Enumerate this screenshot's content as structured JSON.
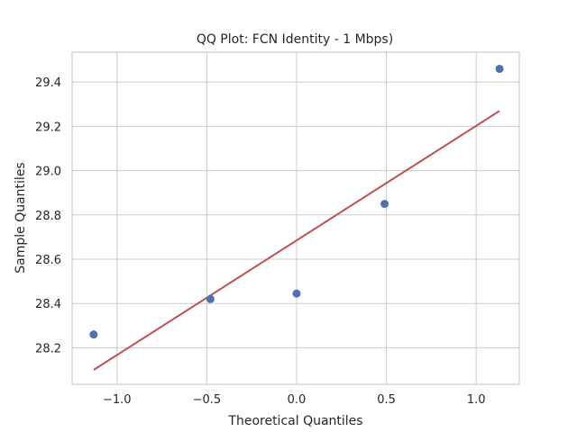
{
  "chart_data": {
    "type": "scatter",
    "title": "QQ Plot: FCN Identity - 1 Mbps)",
    "xlabel": "Theoretical Quantiles",
    "ylabel": "Sample Quantiles",
    "xlim": [
      -1.25,
      1.24
    ],
    "ylim": [
      28.035,
      29.535
    ],
    "xticks": [
      -1.0,
      -0.5,
      0.0,
      0.5,
      1.0
    ],
    "xtick_labels": [
      "−1.0",
      "−0.5",
      "0.0",
      "0.5",
      "1.0"
    ],
    "yticks": [
      28.2,
      28.4,
      28.6,
      28.8,
      29.0,
      29.2,
      29.4
    ],
    "ytick_labels": [
      "28.2",
      "28.4",
      "28.6",
      "28.8",
      "29.0",
      "29.2",
      "29.4"
    ],
    "grid": true,
    "points": {
      "x": [
        -1.13,
        -0.48,
        0.0,
        0.49,
        1.13
      ],
      "y": [
        28.26,
        28.42,
        28.445,
        28.85,
        29.46
      ],
      "color": "#4c72b0"
    },
    "fit_line": {
      "x": [
        -1.13,
        1.13
      ],
      "y": [
        28.1,
        29.27
      ],
      "color": "#c44e52"
    }
  }
}
